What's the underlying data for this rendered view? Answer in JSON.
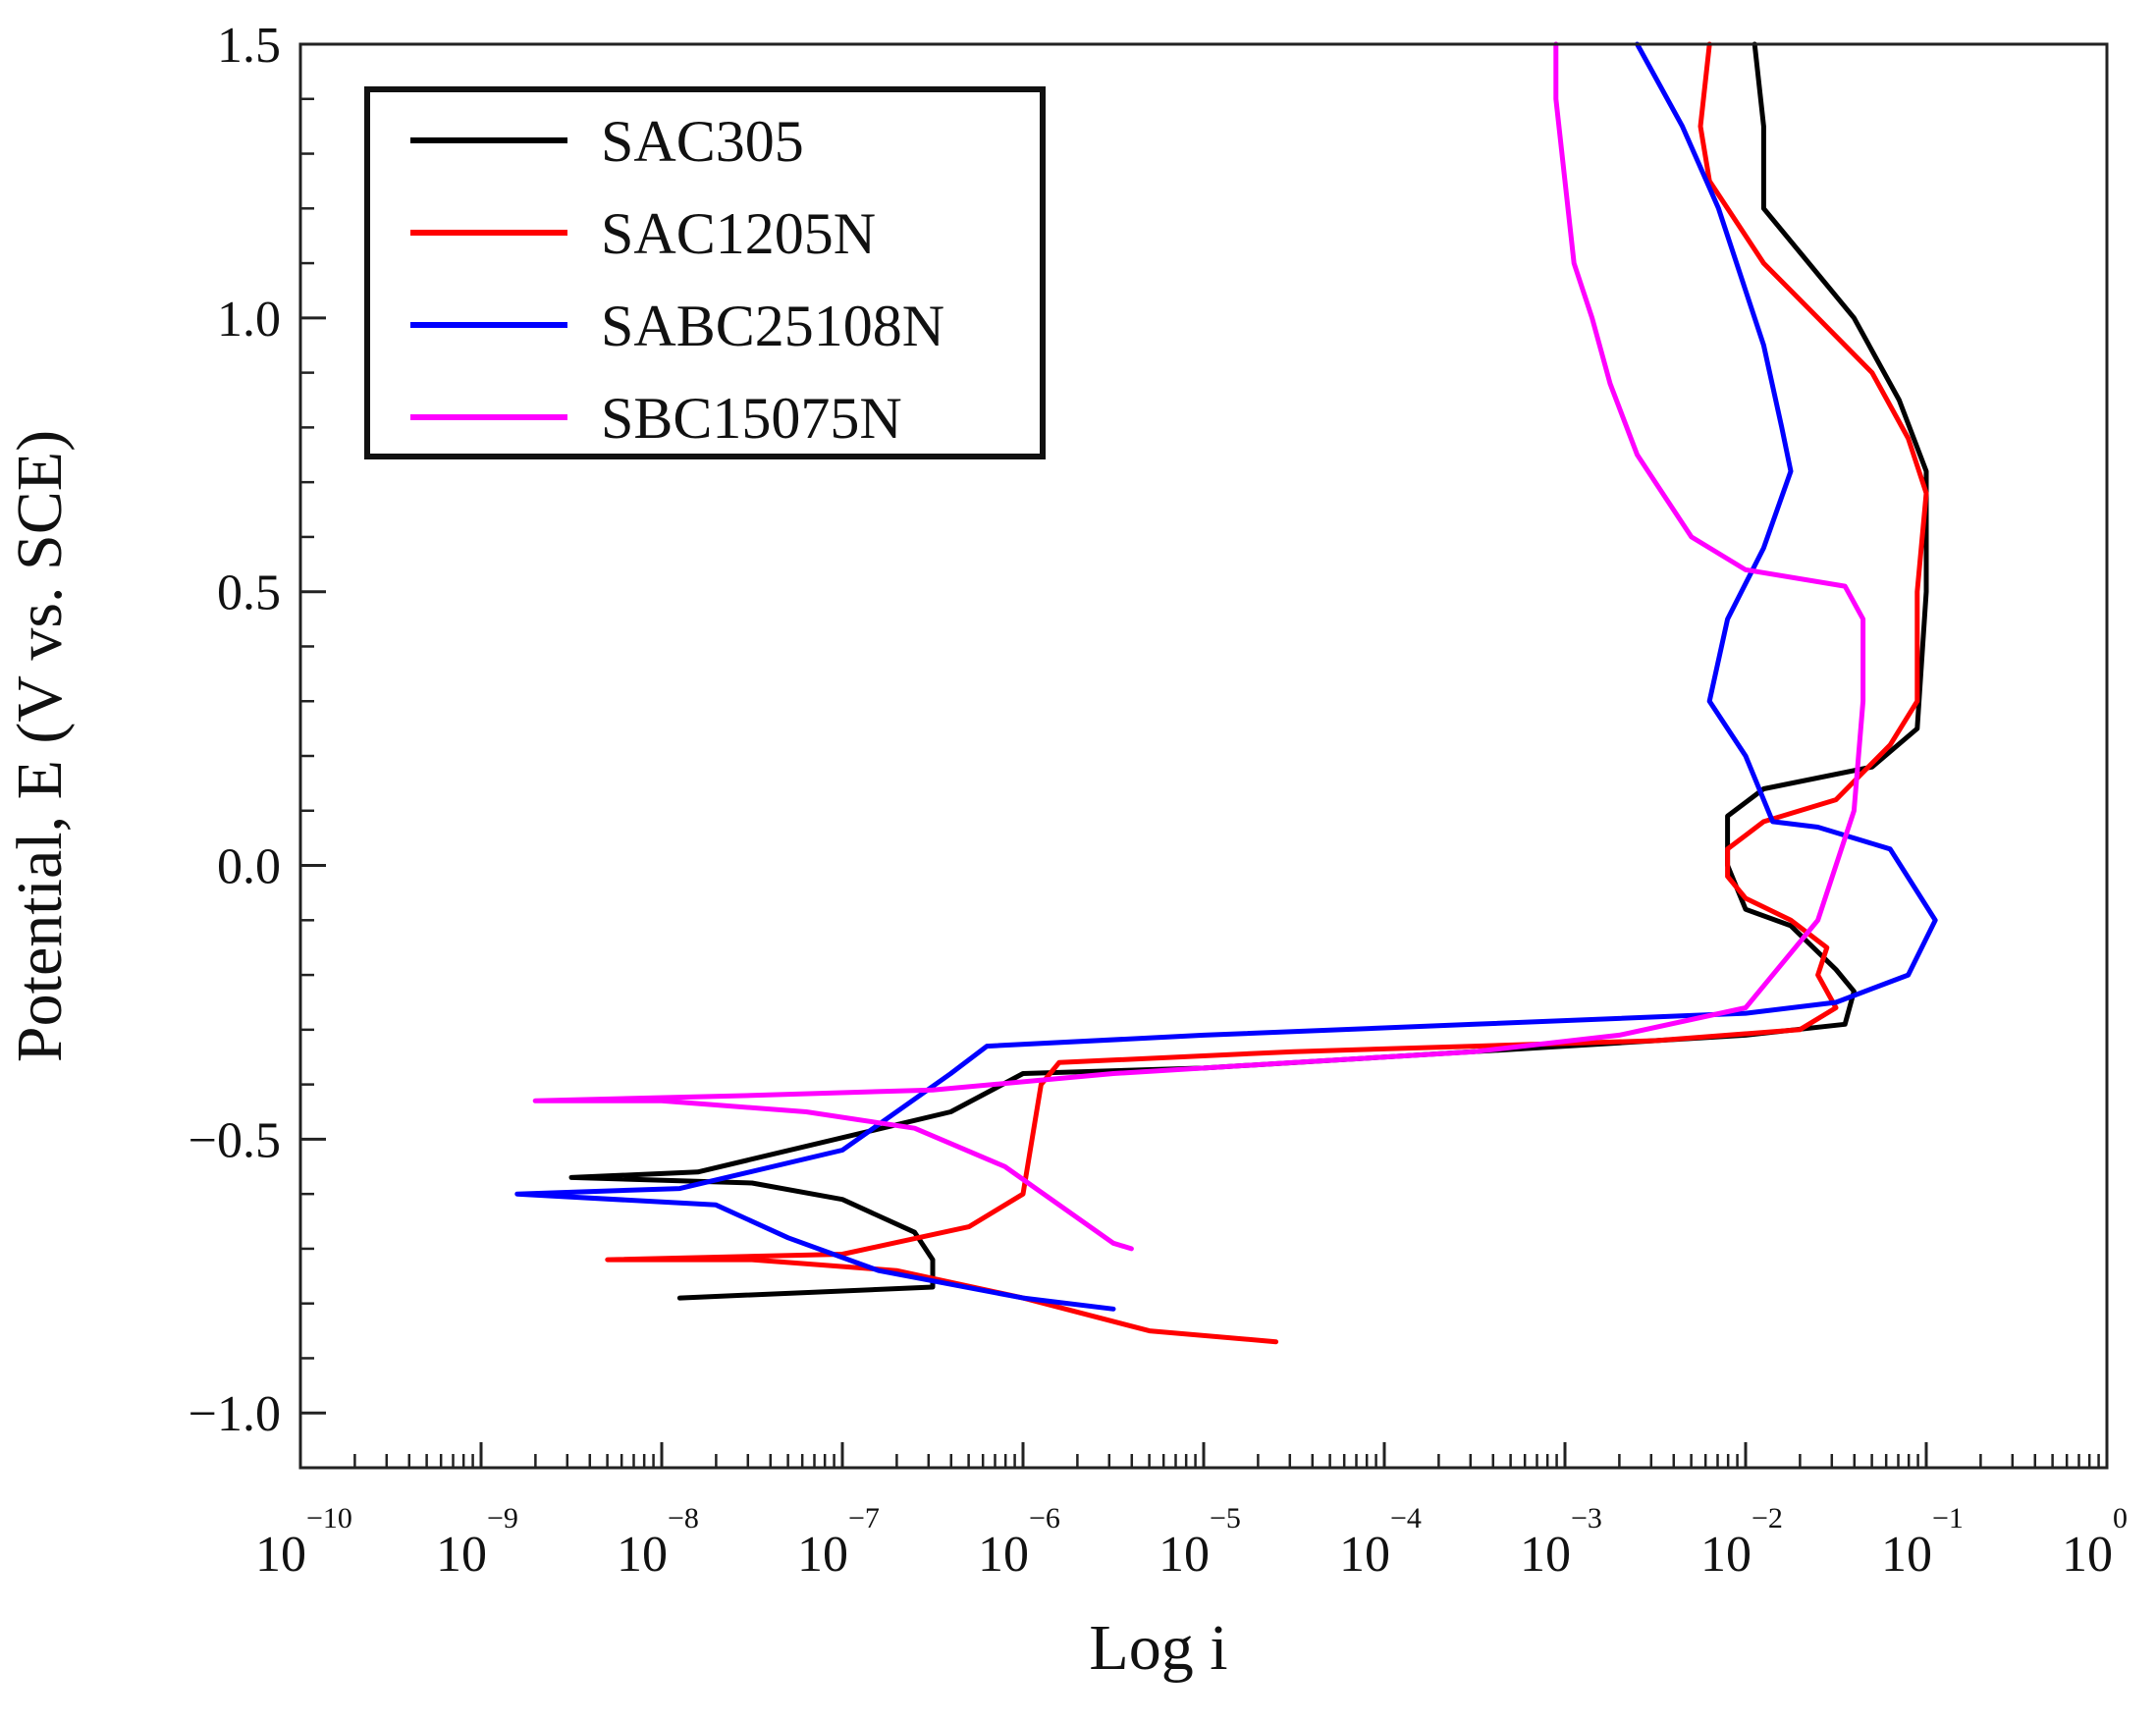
{
  "chart_data": {
    "type": "line",
    "title": "",
    "xlabel": "Log i",
    "ylabel": "Potential, E (V vs. SCE)",
    "xscale": "log",
    "xlim_exp": [
      -10,
      0
    ],
    "ylim": [
      -1.1,
      1.5
    ],
    "x_tick_base": "10",
    "x_tick_exponents": [
      "−10",
      "−9",
      "−8",
      "−7",
      "−6",
      "−5",
      "−4",
      "−3",
      "−2",
      "−1",
      "0"
    ],
    "y_ticks": [
      -1.0,
      -0.5,
      0.0,
      0.5,
      1.0,
      1.5
    ],
    "y_tick_labels": [
      "−1.0",
      "−0.5",
      "0.0",
      "0.5",
      "1.0",
      "1.5"
    ],
    "legend_position": "top-left",
    "series": [
      {
        "name": "SAC305",
        "color": "#000000",
        "points": [
          [
            -7.9,
            -0.79
          ],
          [
            -6.5,
            -0.77
          ],
          [
            -6.5,
            -0.72
          ],
          [
            -6.6,
            -0.67
          ],
          [
            -7.0,
            -0.61
          ],
          [
            -7.5,
            -0.58
          ],
          [
            -8.5,
            -0.57
          ],
          [
            -7.8,
            -0.56
          ],
          [
            -6.4,
            -0.45
          ],
          [
            -6.0,
            -0.38
          ],
          [
            -5.0,
            -0.37
          ],
          [
            -3.0,
            -0.33
          ],
          [
            -2.0,
            -0.31
          ],
          [
            -1.45,
            -0.29
          ],
          [
            -1.4,
            -0.23
          ],
          [
            -1.5,
            -0.19
          ],
          [
            -1.75,
            -0.11
          ],
          [
            -2.0,
            -0.08
          ],
          [
            -2.1,
            0.0
          ],
          [
            -2.1,
            0.09
          ],
          [
            -1.9,
            0.14
          ],
          [
            -1.3,
            0.18
          ],
          [
            -1.05,
            0.25
          ],
          [
            -1.0,
            0.5
          ],
          [
            -1.0,
            0.72
          ],
          [
            -1.15,
            0.85
          ],
          [
            -1.4,
            1.0
          ],
          [
            -1.7,
            1.12
          ],
          [
            -1.9,
            1.2
          ],
          [
            -1.9,
            1.35
          ],
          [
            -1.95,
            1.5
          ]
        ]
      },
      {
        "name": "SAC1205N",
        "color": "#ff0000",
        "points": [
          [
            -4.6,
            -0.87
          ],
          [
            -5.3,
            -0.85
          ],
          [
            -6.0,
            -0.79
          ],
          [
            -6.7,
            -0.74
          ],
          [
            -7.5,
            -0.72
          ],
          [
            -8.3,
            -0.72
          ],
          [
            -7.0,
            -0.71
          ],
          [
            -6.3,
            -0.66
          ],
          [
            -6.0,
            -0.6
          ],
          [
            -5.95,
            -0.5
          ],
          [
            -5.9,
            -0.4
          ],
          [
            -5.8,
            -0.36
          ],
          [
            -4.5,
            -0.34
          ],
          [
            -3.5,
            -0.33
          ],
          [
            -2.5,
            -0.32
          ],
          [
            -1.7,
            -0.3
          ],
          [
            -1.5,
            -0.26
          ],
          [
            -1.6,
            -0.2
          ],
          [
            -1.55,
            -0.15
          ],
          [
            -1.75,
            -0.1
          ],
          [
            -2.0,
            -0.06
          ],
          [
            -2.1,
            -0.02
          ],
          [
            -2.1,
            0.03
          ],
          [
            -1.9,
            0.08
          ],
          [
            -1.5,
            0.12
          ],
          [
            -1.2,
            0.22
          ],
          [
            -1.05,
            0.3
          ],
          [
            -1.05,
            0.5
          ],
          [
            -1.0,
            0.68
          ],
          [
            -1.1,
            0.78
          ],
          [
            -1.3,
            0.9
          ],
          [
            -1.6,
            1.0
          ],
          [
            -1.9,
            1.1
          ],
          [
            -2.2,
            1.25
          ],
          [
            -2.25,
            1.35
          ],
          [
            -2.2,
            1.5
          ]
        ]
      },
      {
        "name": "SABC25108N",
        "color": "#0000ff",
        "points": [
          [
            -5.5,
            -0.81
          ],
          [
            -6.0,
            -0.79
          ],
          [
            -6.8,
            -0.74
          ],
          [
            -7.3,
            -0.68
          ],
          [
            -7.7,
            -0.62
          ],
          [
            -8.8,
            -0.6
          ],
          [
            -7.9,
            -0.59
          ],
          [
            -7.0,
            -0.52
          ],
          [
            -6.4,
            -0.38
          ],
          [
            -6.2,
            -0.33
          ],
          [
            -5.0,
            -0.31
          ],
          [
            -3.5,
            -0.29
          ],
          [
            -2.0,
            -0.27
          ],
          [
            -1.5,
            -0.25
          ],
          [
            -1.1,
            -0.2
          ],
          [
            -0.95,
            -0.1
          ],
          [
            -1.2,
            0.03
          ],
          [
            -1.6,
            0.07
          ],
          [
            -1.85,
            0.08
          ],
          [
            -2.0,
            0.2
          ],
          [
            -2.2,
            0.3
          ],
          [
            -2.1,
            0.45
          ],
          [
            -1.9,
            0.58
          ],
          [
            -1.75,
            0.72
          ],
          [
            -1.8,
            0.8
          ],
          [
            -1.9,
            0.95
          ],
          [
            -2.0,
            1.05
          ],
          [
            -2.15,
            1.2
          ],
          [
            -2.35,
            1.35
          ],
          [
            -2.6,
            1.5
          ]
        ]
      },
      {
        "name": "SBC15075N",
        "color": "#ff00ff",
        "points": [
          [
            -5.4,
            -0.7
          ],
          [
            -5.5,
            -0.69
          ],
          [
            -5.8,
            -0.62
          ],
          [
            -6.1,
            -0.55
          ],
          [
            -6.6,
            -0.48
          ],
          [
            -7.2,
            -0.45
          ],
          [
            -8.0,
            -0.43
          ],
          [
            -8.7,
            -0.43
          ],
          [
            -7.5,
            -0.42
          ],
          [
            -6.5,
            -0.41
          ],
          [
            -5.5,
            -0.38
          ],
          [
            -4.5,
            -0.36
          ],
          [
            -3.5,
            -0.34
          ],
          [
            -2.7,
            -0.31
          ],
          [
            -2.0,
            -0.26
          ],
          [
            -1.6,
            -0.1
          ],
          [
            -1.4,
            0.1
          ],
          [
            -1.35,
            0.3
          ],
          [
            -1.35,
            0.45
          ],
          [
            -1.45,
            0.51
          ],
          [
            -2.0,
            0.54
          ],
          [
            -2.3,
            0.6
          ],
          [
            -2.6,
            0.75
          ],
          [
            -2.75,
            0.88
          ],
          [
            -2.85,
            1.0
          ],
          [
            -2.95,
            1.1
          ],
          [
            -3.0,
            1.25
          ],
          [
            -3.05,
            1.4
          ],
          [
            -3.05,
            1.5
          ]
        ]
      }
    ]
  }
}
